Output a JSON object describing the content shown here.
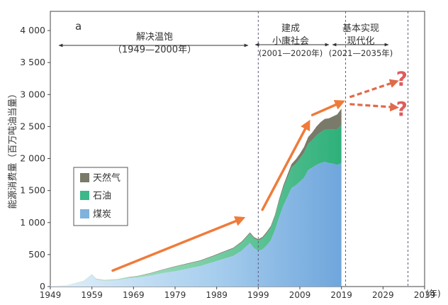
{
  "chart_data": {
    "type": "area",
    "panel_label": "a",
    "ylabel": "能源消费量（百万吨油当量）",
    "xunit": "(年)",
    "xlim": [
      1949,
      2039
    ],
    "ylim": [
      0,
      4300
    ],
    "x_ticks": [
      1949,
      1959,
      1969,
      1979,
      1989,
      1999,
      2009,
      2019,
      2029,
      2039
    ],
    "y_ticks": [
      0,
      500,
      1000,
      1500,
      2000,
      2500,
      3000,
      3500,
      4000
    ],
    "y_tick_labels": [
      "0",
      "500",
      "1 000",
      "1 500",
      "2 000",
      "2 500",
      "3 000",
      "3 500",
      "4 000"
    ],
    "x": [
      1949,
      1953,
      1957,
      1959,
      1960,
      1962,
      1965,
      1968,
      1970,
      1973,
      1976,
      1979,
      1982,
      1985,
      1988,
      1990,
      1993,
      1995,
      1996,
      1997,
      1998,
      1999,
      2000,
      2001,
      2002,
      2003,
      2004,
      2005,
      2006,
      2007,
      2008,
      2009,
      2010,
      2011,
      2012,
      2013,
      2014,
      2015,
      2016,
      2017,
      2018,
      2019
    ],
    "series": [
      {
        "name": "煤炭",
        "color": "#7fb2dc",
        "values": [
          10,
          20,
          80,
          180,
          110,
          90,
          100,
          130,
          140,
          170,
          210,
          240,
          280,
          320,
          380,
          420,
          480,
          560,
          620,
          680,
          600,
          560,
          580,
          640,
          720,
          880,
          1080,
          1260,
          1400,
          1540,
          1580,
          1640,
          1700,
          1820,
          1860,
          1900,
          1930,
          1950,
          1930,
          1920,
          1900,
          1930
        ]
      },
      {
        "name": "石油",
        "color": "#3cb88a",
        "values": [
          0,
          2,
          5,
          8,
          8,
          9,
          12,
          18,
          22,
          35,
          50,
          70,
          75,
          80,
          90,
          100,
          115,
          130,
          140,
          150,
          155,
          160,
          175,
          190,
          200,
          210,
          250,
          280,
          300,
          320,
          340,
          360,
          390,
          410,
          430,
          460,
          480,
          500,
          520,
          540,
          560,
          590
        ]
      },
      {
        "name": "天然气",
        "color": "#7a7a6a",
        "values": [
          0,
          0,
          1,
          2,
          2,
          2,
          2,
          3,
          4,
          5,
          6,
          7,
          8,
          9,
          10,
          11,
          12,
          14,
          15,
          16,
          17,
          18,
          20,
          22,
          24,
          27,
          32,
          36,
          45,
          55,
          65,
          75,
          90,
          105,
          120,
          140,
          160,
          170,
          180,
          200,
          230,
          260
        ]
      }
    ],
    "periods": [
      {
        "label": "解决温饱",
        "range": "（1949—2000年）"
      },
      {
        "label1": "建成",
        "label2": "小康社会",
        "range": "(2001—2020年)"
      },
      {
        "label1": "基本实现",
        "label2": "现代化",
        "range": "(2021—2035年)"
      }
    ],
    "period_dividers": [
      1999,
      2020,
      2035
    ],
    "trend_arrows": [
      {
        "from": [
          1964,
          250
        ],
        "to": [
          1995,
          1060
        ]
      },
      {
        "from": [
          2000,
          1200
        ],
        "to": [
          2011,
          2550
        ]
      },
      {
        "from": [
          2012,
          2680
        ],
        "to": [
          2019,
          2880
        ]
      }
    ],
    "future_arrows": [
      {
        "from": [
          2021,
          2960
        ],
        "to": [
          2032,
          3200
        ]
      },
      {
        "from": [
          2021,
          2850
        ],
        "to": [
          2032,
          2800
        ]
      }
    ],
    "question_marks": [
      {
        "text": "?",
        "x": 2033.5,
        "y": 3250
      },
      {
        "text": "?",
        "x": 2033.5,
        "y": 2780
      }
    ],
    "colors": {
      "arrow": "#ef7b3a",
      "future": "#e06a4a",
      "question": "#e05c5c"
    }
  }
}
